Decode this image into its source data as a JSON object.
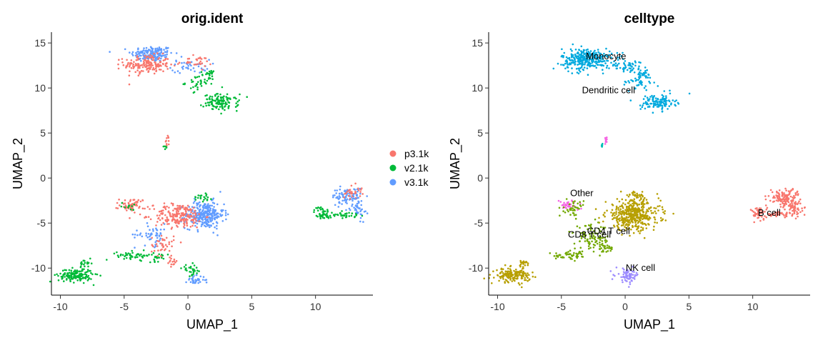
{
  "chart_data": [
    {
      "type": "scatter",
      "title": "orig.ident",
      "xlabel": "UMAP_1",
      "ylabel": "UMAP_2",
      "xlim": [
        -10.7,
        14.5
      ],
      "ylim": [
        -13.0,
        16.2
      ],
      "xticks": [
        -10,
        -5,
        0,
        5,
        10
      ],
      "yticks": [
        15,
        10,
        5,
        0,
        -5,
        -10
      ],
      "grid": false,
      "legend": {
        "placement": "right",
        "entries": [
          {
            "label": "p3.1k",
            "color": "#F8766D"
          },
          {
            "label": "v2.1k",
            "color": "#00BA38"
          },
          {
            "label": "v3.1k",
            "color": "#619CFF"
          }
        ]
      },
      "clusters": [
        {
          "group": "v3.1k",
          "cx": -2.8,
          "cy": 13.8,
          "sx": 1.1,
          "sy": 0.6,
          "n": 160
        },
        {
          "group": "p3.1k",
          "cx": -3.2,
          "cy": 12.6,
          "sx": 1.2,
          "sy": 0.7,
          "n": 170
        },
        {
          "group": "v3.1k",
          "cx": 0.2,
          "cy": 12.4,
          "sx": 1.0,
          "sy": 0.5,
          "n": 40
        },
        {
          "group": "p3.1k",
          "cx": 0.5,
          "cy": 12.9,
          "sx": 0.9,
          "sy": 0.4,
          "n": 30
        },
        {
          "group": "v2.1k",
          "cx": 1.0,
          "cy": 10.6,
          "sx": 0.8,
          "sy": 0.6,
          "n": 40
        },
        {
          "group": "v2.1k",
          "cx": 2.6,
          "cy": 8.4,
          "sx": 0.9,
          "sy": 0.6,
          "n": 120
        },
        {
          "group": "v2.1k",
          "cx": 1.5,
          "cy": 11.7,
          "sx": 0.4,
          "sy": 0.3,
          "n": 15
        },
        {
          "group": "p3.1k",
          "cx": -1.6,
          "cy": 4.1,
          "sx": 0.12,
          "sy": 0.4,
          "n": 10
        },
        {
          "group": "v2.1k",
          "cx": -1.8,
          "cy": 3.5,
          "sx": 0.1,
          "sy": 0.2,
          "n": 6
        },
        {
          "group": "p3.1k",
          "cx": -4.3,
          "cy": -3.0,
          "sx": 0.7,
          "sy": 0.5,
          "n": 60
        },
        {
          "group": "v2.1k",
          "cx": -4.6,
          "cy": -3.1,
          "sx": 0.4,
          "sy": 0.3,
          "n": 10
        },
        {
          "group": "v3.1k",
          "cx": 1.3,
          "cy": -4.1,
          "sx": 1.0,
          "sy": 1.0,
          "n": 280
        },
        {
          "group": "p3.1k",
          "cx": -0.7,
          "cy": -4.2,
          "sx": 1.3,
          "sy": 0.9,
          "n": 200
        },
        {
          "group": "v2.1k",
          "cx": 1.2,
          "cy": -2.0,
          "sx": 0.5,
          "sy": 0.4,
          "n": 20
        },
        {
          "group": "v3.1k",
          "cx": -2.8,
          "cy": -6.3,
          "sx": 0.9,
          "sy": 0.8,
          "n": 50
        },
        {
          "group": "p3.1k",
          "cx": -2.0,
          "cy": -7.4,
          "sx": 0.6,
          "sy": 0.8,
          "n": 40
        },
        {
          "group": "v2.1k",
          "cx": -4.2,
          "cy": -8.6,
          "sx": 0.9,
          "sy": 0.3,
          "n": 50
        },
        {
          "group": "v2.1k",
          "cx": -2.3,
          "cy": -8.8,
          "sx": 0.5,
          "sy": 0.3,
          "n": 20
        },
        {
          "group": "p3.1k",
          "cx": -1.3,
          "cy": -9.3,
          "sx": 0.3,
          "sy": 0.5,
          "n": 15
        },
        {
          "group": "v3.1k",
          "cx": 0.6,
          "cy": -11.3,
          "sx": 0.5,
          "sy": 0.3,
          "n": 40
        },
        {
          "group": "v2.1k",
          "cx": 0.3,
          "cy": -10.2,
          "sx": 0.5,
          "sy": 0.4,
          "n": 30
        },
        {
          "group": "v2.1k",
          "cx": -8.8,
          "cy": -10.8,
          "sx": 0.9,
          "sy": 0.5,
          "n": 160
        },
        {
          "group": "v2.1k",
          "cx": -8.0,
          "cy": -9.5,
          "sx": 0.3,
          "sy": 0.3,
          "n": 20
        },
        {
          "group": "v3.1k",
          "cx": 12.5,
          "cy": -2.0,
          "sx": 0.8,
          "sy": 0.6,
          "n": 90
        },
        {
          "group": "p3.1k",
          "cx": 12.9,
          "cy": -1.5,
          "sx": 0.5,
          "sy": 0.5,
          "n": 30
        },
        {
          "group": "v3.1k",
          "cx": 13.3,
          "cy": -3.4,
          "sx": 0.4,
          "sy": 0.8,
          "n": 40
        },
        {
          "group": "v2.1k",
          "cx": 10.5,
          "cy": -3.9,
          "sx": 0.4,
          "sy": 0.5,
          "n": 40
        },
        {
          "group": "v2.1k",
          "cx": 12.0,
          "cy": -4.1,
          "sx": 1.0,
          "sy": 0.2,
          "n": 40
        }
      ]
    },
    {
      "type": "scatter",
      "title": "celltype",
      "xlabel": "UMAP_1",
      "ylabel": "UMAP_2",
      "xlim": [
        -10.7,
        14.5
      ],
      "ylim": [
        -13.0,
        16.2
      ],
      "xticks": [
        -10,
        -5,
        0,
        5,
        10
      ],
      "yticks": [
        15,
        10,
        5,
        0,
        -5,
        -10
      ],
      "grid": false,
      "palette": {
        "Monocyte": "#00A9DE",
        "Dendritic cell": "#00A9DE",
        "B cell": "#F8766D",
        "CD4 T cell": "#B79F00",
        "CD8 T cell": "#72A800",
        "NK cell": "#9D8CFF",
        "Other": "#F564E3",
        "Other2": "#00BFB5"
      },
      "labels": [
        {
          "text": "Monocyte",
          "x": -1.5,
          "y": 13.2
        },
        {
          "text": "Dendritic cell",
          "x": -1.3,
          "y": 9.4
        },
        {
          "text": "Other",
          "x": -3.4,
          "y": -2.0
        },
        {
          "text": "CD4 T cell",
          "x": -1.3,
          "y": -6.2
        },
        {
          "text": "CD8 T cell",
          "x": -2.8,
          "y": -6.6
        },
        {
          "text": "NK cell",
          "x": 1.2,
          "y": -10.3
        },
        {
          "text": "B cell",
          "x": 11.3,
          "y": -4.2
        }
      ],
      "clusters": [
        {
          "group": "Monocyte",
          "cx": -3.0,
          "cy": 13.2,
          "sx": 1.3,
          "sy": 0.8,
          "n": 320
        },
        {
          "group": "Monocyte",
          "cx": 0.3,
          "cy": 12.4,
          "sx": 1.0,
          "sy": 0.5,
          "n": 60
        },
        {
          "group": "Monocyte",
          "cx": 1.5,
          "cy": 11.6,
          "sx": 0.4,
          "sy": 0.3,
          "n": 15
        },
        {
          "group": "Dendritic cell",
          "cx": 1.0,
          "cy": 10.6,
          "sx": 0.8,
          "sy": 0.6,
          "n": 40
        },
        {
          "group": "Dendritic cell",
          "cx": 2.6,
          "cy": 8.4,
          "sx": 0.9,
          "sy": 0.6,
          "n": 120
        },
        {
          "group": "Other",
          "cx": -1.5,
          "cy": 4.2,
          "sx": 0.12,
          "sy": 0.3,
          "n": 10
        },
        {
          "group": "Other2",
          "cx": -1.8,
          "cy": 3.5,
          "sx": 0.1,
          "sy": 0.2,
          "n": 6
        },
        {
          "group": "Other",
          "cx": -4.4,
          "cy": -3.0,
          "sx": 0.5,
          "sy": 0.4,
          "n": 35
        },
        {
          "group": "CD8 T cell",
          "cx": -4.0,
          "cy": -3.4,
          "sx": 0.5,
          "sy": 0.6,
          "n": 40
        },
        {
          "group": "CD4 T cell",
          "cx": 0.6,
          "cy": -4.1,
          "sx": 1.4,
          "sy": 1.1,
          "n": 420
        },
        {
          "group": "CD4 T cell",
          "cx": 0.8,
          "cy": -2.0,
          "sx": 0.5,
          "sy": 0.4,
          "n": 30
        },
        {
          "group": "CD8 T cell",
          "cx": -2.6,
          "cy": -6.6,
          "sx": 0.9,
          "sy": 0.9,
          "n": 90
        },
        {
          "group": "CD8 T cell",
          "cx": -1.6,
          "cy": -7.8,
          "sx": 0.5,
          "sy": 0.5,
          "n": 30
        },
        {
          "group": "CD8 T cell",
          "cx": -4.2,
          "cy": -8.6,
          "sx": 0.9,
          "sy": 0.3,
          "n": 50
        },
        {
          "group": "NK cell",
          "cx": 0.2,
          "cy": -10.8,
          "sx": 0.6,
          "sy": 0.5,
          "n": 70
        },
        {
          "group": "CD4 T cell",
          "cx": -8.8,
          "cy": -10.8,
          "sx": 0.9,
          "sy": 0.5,
          "n": 160
        },
        {
          "group": "CD4 T cell",
          "cx": -8.0,
          "cy": -9.5,
          "sx": 0.3,
          "sy": 0.3,
          "n": 20
        },
        {
          "group": "B cell",
          "cx": 12.5,
          "cy": -2.2,
          "sx": 0.8,
          "sy": 0.7,
          "n": 130
        },
        {
          "group": "B cell",
          "cx": 13.3,
          "cy": -3.4,
          "sx": 0.4,
          "sy": 0.8,
          "n": 40
        },
        {
          "group": "B cell",
          "cx": 10.5,
          "cy": -3.9,
          "sx": 0.4,
          "sy": 0.5,
          "n": 40
        },
        {
          "group": "B cell",
          "cx": 12.0,
          "cy": -4.1,
          "sx": 1.0,
          "sy": 0.2,
          "n": 40
        }
      ]
    }
  ]
}
